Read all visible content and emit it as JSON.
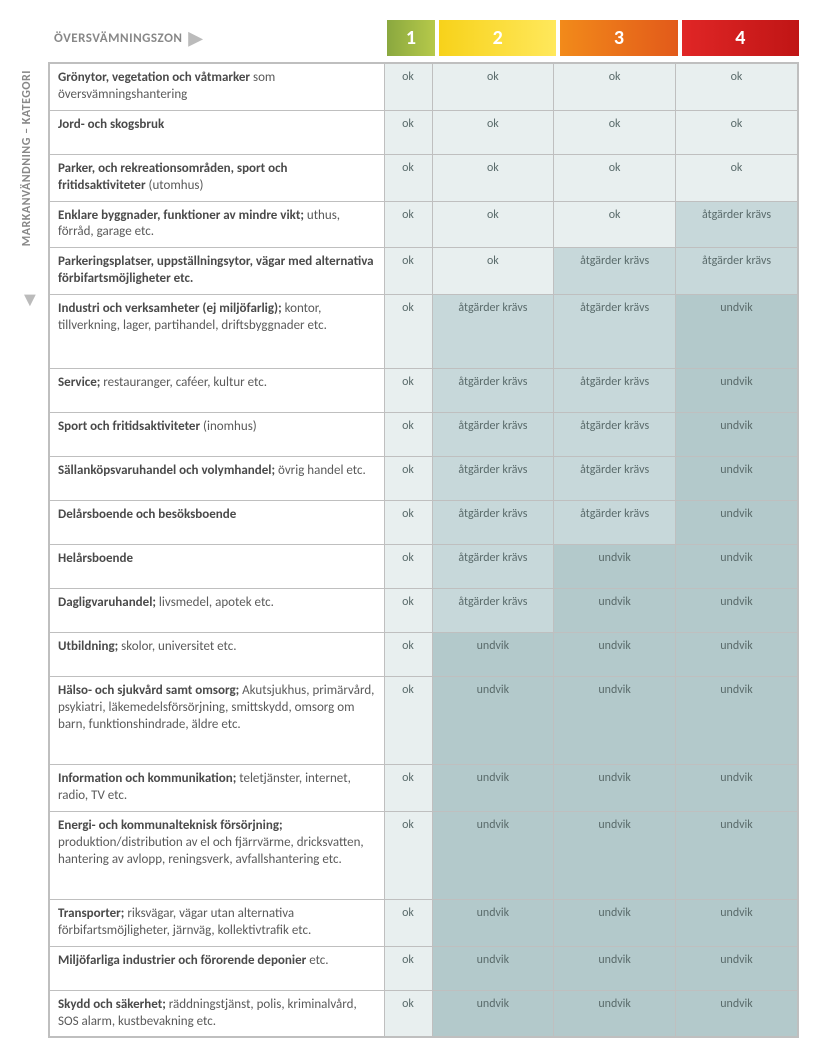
{
  "labels": {
    "top": "ÖVERSVÄMNINGSZON",
    "side": "MARKANVÄNDNING – KATEGORI"
  },
  "zones": [
    {
      "num": "1",
      "bg": "linear-gradient(to right,#8aa83f,#b6c94a)"
    },
    {
      "num": "2",
      "bg": "linear-gradient(to right,#f7d21a,#ffe85c)"
    },
    {
      "num": "3",
      "bg": "linear-gradient(to right,#f28a1a,#e25a1a)"
    },
    {
      "num": "4",
      "bg": "linear-gradient(to right,#e02626,#c01515)"
    }
  ],
  "colors": {
    "ok": "#e8efef",
    "atg": "#c7d8da",
    "und": "#b3c9cb"
  },
  "values": {
    "ok": "ok",
    "atg": "åtgärder krävs",
    "und": "undvik"
  },
  "rows": [
    {
      "bold": "Grönytor, vegetation och våtmarker",
      "rest": " som översvämningshantering",
      "cells": [
        "ok",
        "ok",
        "ok",
        "ok"
      ],
      "h": "tall"
    },
    {
      "bold": "Jord- och skogsbruk",
      "rest": "",
      "cells": [
        "ok",
        "ok",
        "ok",
        "ok"
      ],
      "h": "tall"
    },
    {
      "bold": "Parker, och rekreationsområden, sport och fritidsaktiviteter",
      "rest": " (utomhus)",
      "cells": [
        "ok",
        "ok",
        "ok",
        "ok"
      ],
      "h": "tall"
    },
    {
      "bold": "Enklare byggnader, funktioner av mindre vikt;",
      "rest": " uthus, förråd, garage etc.",
      "cells": [
        "ok",
        "ok",
        "ok",
        "atg"
      ],
      "h": "tall"
    },
    {
      "bold": "Parkeringsplatser, uppställningsytor, vägar med alternativa förbifartsmöjligheter etc.",
      "rest": "",
      "cells": [
        "ok",
        "ok",
        "atg",
        "atg"
      ],
      "h": "tall"
    },
    {
      "bold": "Industri och verksamheter (ej miljöfarlig);",
      "rest": " kontor, tillverkning, lager, partihandel, driftsbyggnader etc.",
      "cells": [
        "ok",
        "atg",
        "atg",
        "und"
      ],
      "h": "xtall"
    },
    {
      "bold": "Service;",
      "rest": " restauranger, caféer, kultur etc.",
      "cells": [
        "ok",
        "atg",
        "atg",
        "und"
      ],
      "h": "tall"
    },
    {
      "bold": "Sport och fritidsaktiviteter",
      "rest": " (inomhus)",
      "cells": [
        "ok",
        "atg",
        "atg",
        "und"
      ],
      "h": "tall"
    },
    {
      "bold": "Sällanköpsvaruhandel och volymhandel;",
      "rest": " övrig handel etc.",
      "cells": [
        "ok",
        "atg",
        "atg",
        "und"
      ],
      "h": "tall"
    },
    {
      "bold": "Delårsboende och besöksboende",
      "rest": "",
      "cells": [
        "ok",
        "atg",
        "atg",
        "und"
      ],
      "h": "tall"
    },
    {
      "bold": "Helårsboende",
      "rest": "",
      "cells": [
        "ok",
        "atg",
        "und",
        "und"
      ],
      "h": "tall"
    },
    {
      "bold": "Dagligvaruhandel;",
      "rest": " livsmedel, apotek etc.",
      "cells": [
        "ok",
        "atg",
        "und",
        "und"
      ],
      "h": "tall"
    },
    {
      "bold": "Utbildning;",
      "rest": " skolor, universitet etc.",
      "cells": [
        "ok",
        "und",
        "und",
        "und"
      ],
      "h": "tall"
    },
    {
      "bold": "Hälso- och sjukvård samt omsorg;",
      "rest": " Akutsjukhus, primärvård, psykiatri, läkemedelsförsörjning, smittskydd, omsorg om barn, funktionshindrade, äldre etc.",
      "cells": [
        "ok",
        "und",
        "und",
        "und"
      ],
      "h": "xxtall"
    },
    {
      "bold": "Information och kommunikation;",
      "rest": " teletjänster, internet, radio, TV etc.",
      "cells": [
        "ok",
        "und",
        "und",
        "und"
      ],
      "h": "tall"
    },
    {
      "bold": "Energi- och kommunalteknisk försörjning;",
      "rest": " produktion/distribution av el och fjärrvärme, dricksvatten, hantering av avlopp, reningsverk, avfallshantering etc.",
      "cells": [
        "ok",
        "und",
        "und",
        "und"
      ],
      "h": "xxtall"
    },
    {
      "bold": "Transporter;",
      "rest": " riksvägar, vägar utan alternativa förbifartsmöjligheter, järnväg, kollektivtrafik etc.",
      "cells": [
        "ok",
        "und",
        "und",
        "und"
      ],
      "h": "tall"
    },
    {
      "bold": "Miljöfarliga industrier och förorende deponier",
      "rest": " etc.",
      "cells": [
        "ok",
        "und",
        "und",
        "und"
      ],
      "h": "tall"
    },
    {
      "bold": "Skydd och säkerhet;",
      "rest": " räddningstjänst, polis, kriminalvård, SOS alarm, kustbevakning etc.",
      "cells": [
        "ok",
        "und",
        "und",
        "und"
      ],
      "h": "tall"
    }
  ]
}
